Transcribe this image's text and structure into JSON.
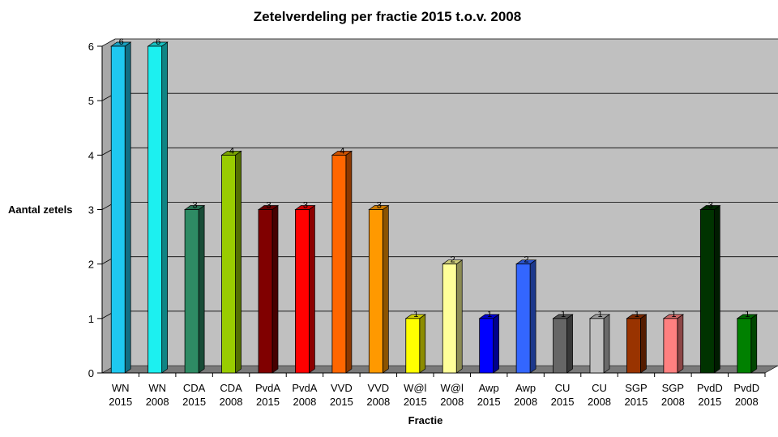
{
  "chart_data": {
    "type": "bar",
    "title": "Zetelverdeling per fractie 2015 t.o.v. 2008",
    "xlabel": "Fractie",
    "ylabel": "Aantal zetels",
    "ylim": [
      0,
      6
    ],
    "yticks": [
      "0",
      "1",
      "2",
      "3",
      "4",
      "5",
      "6"
    ],
    "grid": true,
    "legend": "none",
    "plot_background": "#c0c0c0",
    "categories": [
      [
        "WN",
        "2015"
      ],
      [
        "WN",
        "2008"
      ],
      [
        "CDA",
        "2015"
      ],
      [
        "CDA",
        "2008"
      ],
      [
        "PvdA",
        "2015"
      ],
      [
        "PvdA",
        "2008"
      ],
      [
        "VVD",
        "2015"
      ],
      [
        "VVD",
        "2008"
      ],
      [
        "W@l",
        "2015"
      ],
      [
        "W@l",
        "2008"
      ],
      [
        "Awp",
        "2015"
      ],
      [
        "Awp",
        "2008"
      ],
      [
        "CU",
        "2015"
      ],
      [
        "CU",
        "2008"
      ],
      [
        "SGP",
        "2015"
      ],
      [
        "SGP",
        "2008"
      ],
      [
        "PvdD",
        "2015"
      ],
      [
        "PvdD",
        "2008"
      ]
    ],
    "values": [
      6,
      6,
      3,
      4,
      3,
      3,
      4,
      3,
      1,
      2,
      1,
      2,
      1,
      1,
      1,
      1,
      3,
      1
    ],
    "data_labels": [
      "6",
      "6",
      "3",
      "4",
      "3",
      "3",
      "4",
      "3",
      "1",
      "2",
      "1",
      "2",
      "1",
      "1",
      "1",
      "1",
      "3",
      "1"
    ],
    "colors": [
      "#1ec8f0",
      "#1cf0f0",
      "#2e8b64",
      "#99cc00",
      "#800000",
      "#ff0000",
      "#ff6600",
      "#ff9900",
      "#ffff00",
      "#ffff99",
      "#0000ff",
      "#3366ff",
      "#666666",
      "#c0c0c0",
      "#993300",
      "#ff8080",
      "#003300",
      "#008000"
    ]
  }
}
